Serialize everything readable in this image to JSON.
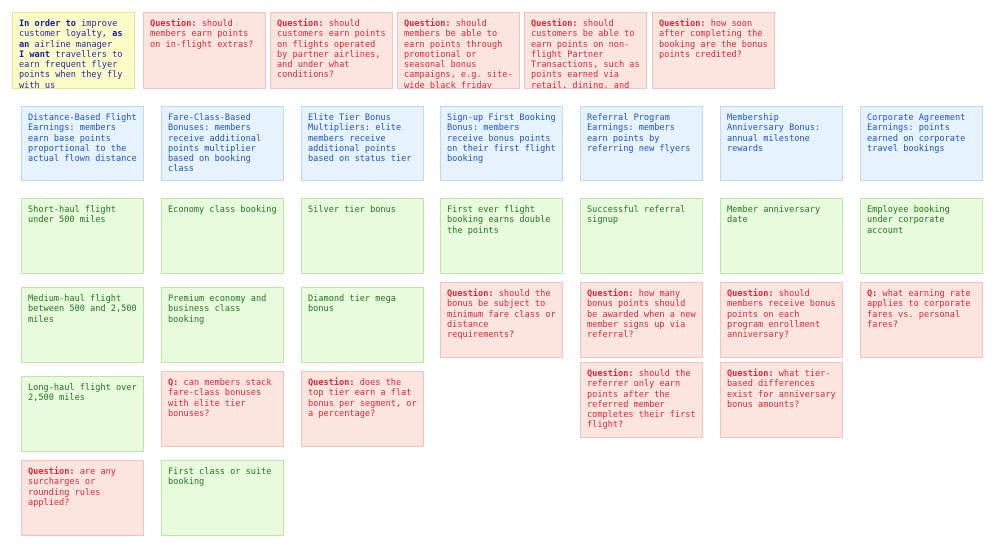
{
  "story": {
    "l1_bold": "In order to",
    "l1_text": " improve customer loyalty,",
    "l2_bold": " as an",
    "l2_text": " airline manager",
    "l3_bold": "I want",
    "l3_text": " travellers to earn frequent flyer points when they fly with us"
  },
  "top_questions": [
    {
      "prefix": "Question:",
      "text": " should members earn points on in-flight extras?"
    },
    {
      "prefix": "Question:",
      "text": " should customers earn points on flights operated by partner airlines, and under what conditions?"
    },
    {
      "prefix": "Question:",
      "text": " should members be able to earn points through promotional or seasonal bonus campaigns, e.g. site-wide black friday bonus?"
    },
    {
      "prefix": "Question:",
      "text": " should customers be able to earn points on non-flight Partner Transactions, such as points earned via retail, dining, and"
    },
    {
      "prefix": "Question:",
      "text": " how soon after completing the booking are the bonus points credited?"
    }
  ],
  "columns": [
    {
      "rule": "Distance-Based Flight Earnings: members earn base points proportional to the actual flown distance",
      "examples": [
        "Short-haul flight under 500 miles",
        "Medium-haul flight between 500 and 2,500 miles",
        "Long-haul flight over 2,500 miles"
      ],
      "questions": [
        {
          "prefix": "Question:",
          "text": " are any surcharges or rounding rules applied?"
        }
      ]
    },
    {
      "rule": "Fare-Class-Based Bonuses: members receive additional points multiplier based on booking class",
      "examples": [
        "Economy class booking",
        "Premium economy and business class booking"
      ],
      "questions": [
        {
          "prefix": "Q:",
          "text": " can members stack fare-class bonuses with elite tier bonuses?"
        }
      ],
      "examples_after": [
        "First class or suite booking"
      ]
    },
    {
      "rule": "Elite Tier Bonus Multipliers: elite members receive additional points based on status tier",
      "examples": [
        "Silver tier bonus",
        "Diamond tier mega bonus"
      ],
      "questions": [
        {
          "prefix": "Question:",
          "text": " does the top tier earn a flat bonus per segment, or a percentage?"
        }
      ]
    },
    {
      "rule": "Sign-up First Booking Bonus: members receive bonus points on their first flight booking",
      "examples": [
        "First ever flight booking earns double the points"
      ],
      "questions": [
        {
          "prefix": "Question:",
          "text": " should the bonus be subject to minimum fare class or distance requirements?"
        }
      ]
    },
    {
      "rule": "Referral Program Earnings: members earn points by referring new flyers",
      "examples": [
        "Successful referral signup"
      ],
      "questions": [
        {
          "prefix": "Question:",
          "text": " how many bonus points should be awarded when a new member signs up via referral?"
        },
        {
          "prefix": "Question:",
          "text": " should the referrer only earn points after the referred member completes their first flight?"
        }
      ]
    },
    {
      "rule": "Membership Anniversary Bonus: annual milestone rewards",
      "examples": [
        "Member anniversary date"
      ],
      "questions": [
        {
          "prefix": "Question:",
          "text": " should members receive bonus points on each program enrollment anniversary?"
        },
        {
          "prefix": "Question:",
          "text": " what tier-based differences exist for anniversary bonus amounts?"
        }
      ]
    },
    {
      "rule": "Corporate Agreement Earnings: points earned on corporate travel bookings",
      "examples": [
        "Employee booking under corporate account"
      ],
      "questions": [
        {
          "prefix": "Q:",
          "text": " what earning rate applies to corporate fares vs. personal fares?"
        }
      ]
    }
  ]
}
